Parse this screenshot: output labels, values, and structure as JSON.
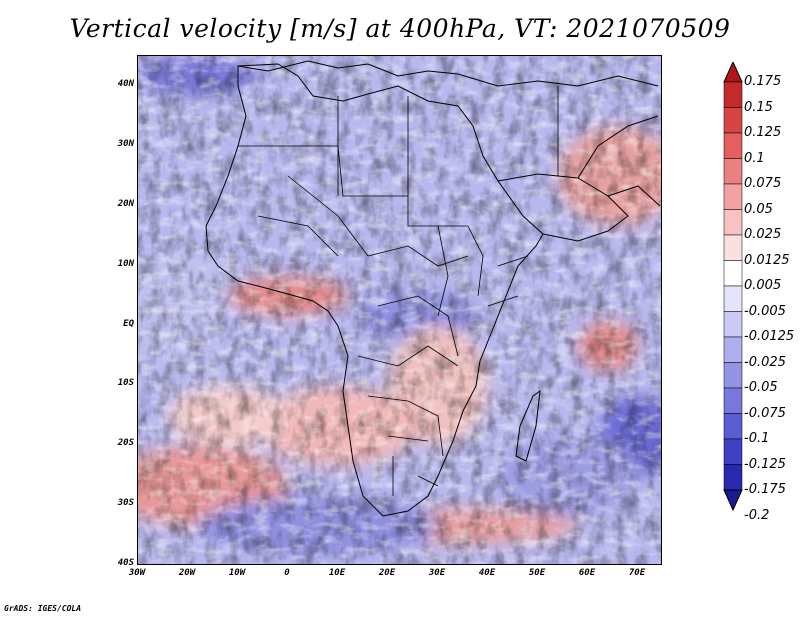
{
  "title": "Vertical velocity [m/s] at 400hPa, VT: 2021070509",
  "footer": "GrADS: IGES/COLA",
  "lat_labels": [
    "40N",
    "30N",
    "20N",
    "10N",
    "EQ",
    "10S",
    "20S",
    "30S",
    "40S"
  ],
  "lon_labels": [
    "30W",
    "20W",
    "10W",
    "0",
    "10E",
    "20E",
    "30E",
    "40E",
    "50E",
    "60E",
    "70E"
  ],
  "colorbar": {
    "labels": [
      "0.175",
      "0.15",
      "0.125",
      "0.1",
      "0.075",
      "0.05",
      "0.025",
      "0.0125",
      "0.005",
      "-0.005",
      "-0.0125",
      "-0.025",
      "-0.05",
      "-0.075",
      "-0.1",
      "-0.125",
      "-0.175",
      "-0.2"
    ],
    "colors": [
      "#b01818",
      "#c42a2a",
      "#d84444",
      "#e26060",
      "#eb8080",
      "#f2a2a2",
      "#f7c2c2",
      "#fbe0e0",
      "#ffffff",
      "#e4e4fa",
      "#cacaf4",
      "#afafee",
      "#9494e6",
      "#7878dc",
      "#5c5cd2",
      "#4040c4",
      "#2828b0",
      "#1a1a96"
    ]
  },
  "legend_colors": {
    "positive": "#d03030",
    "negative": "#3030c0",
    "neutral": "#ffffff"
  }
}
